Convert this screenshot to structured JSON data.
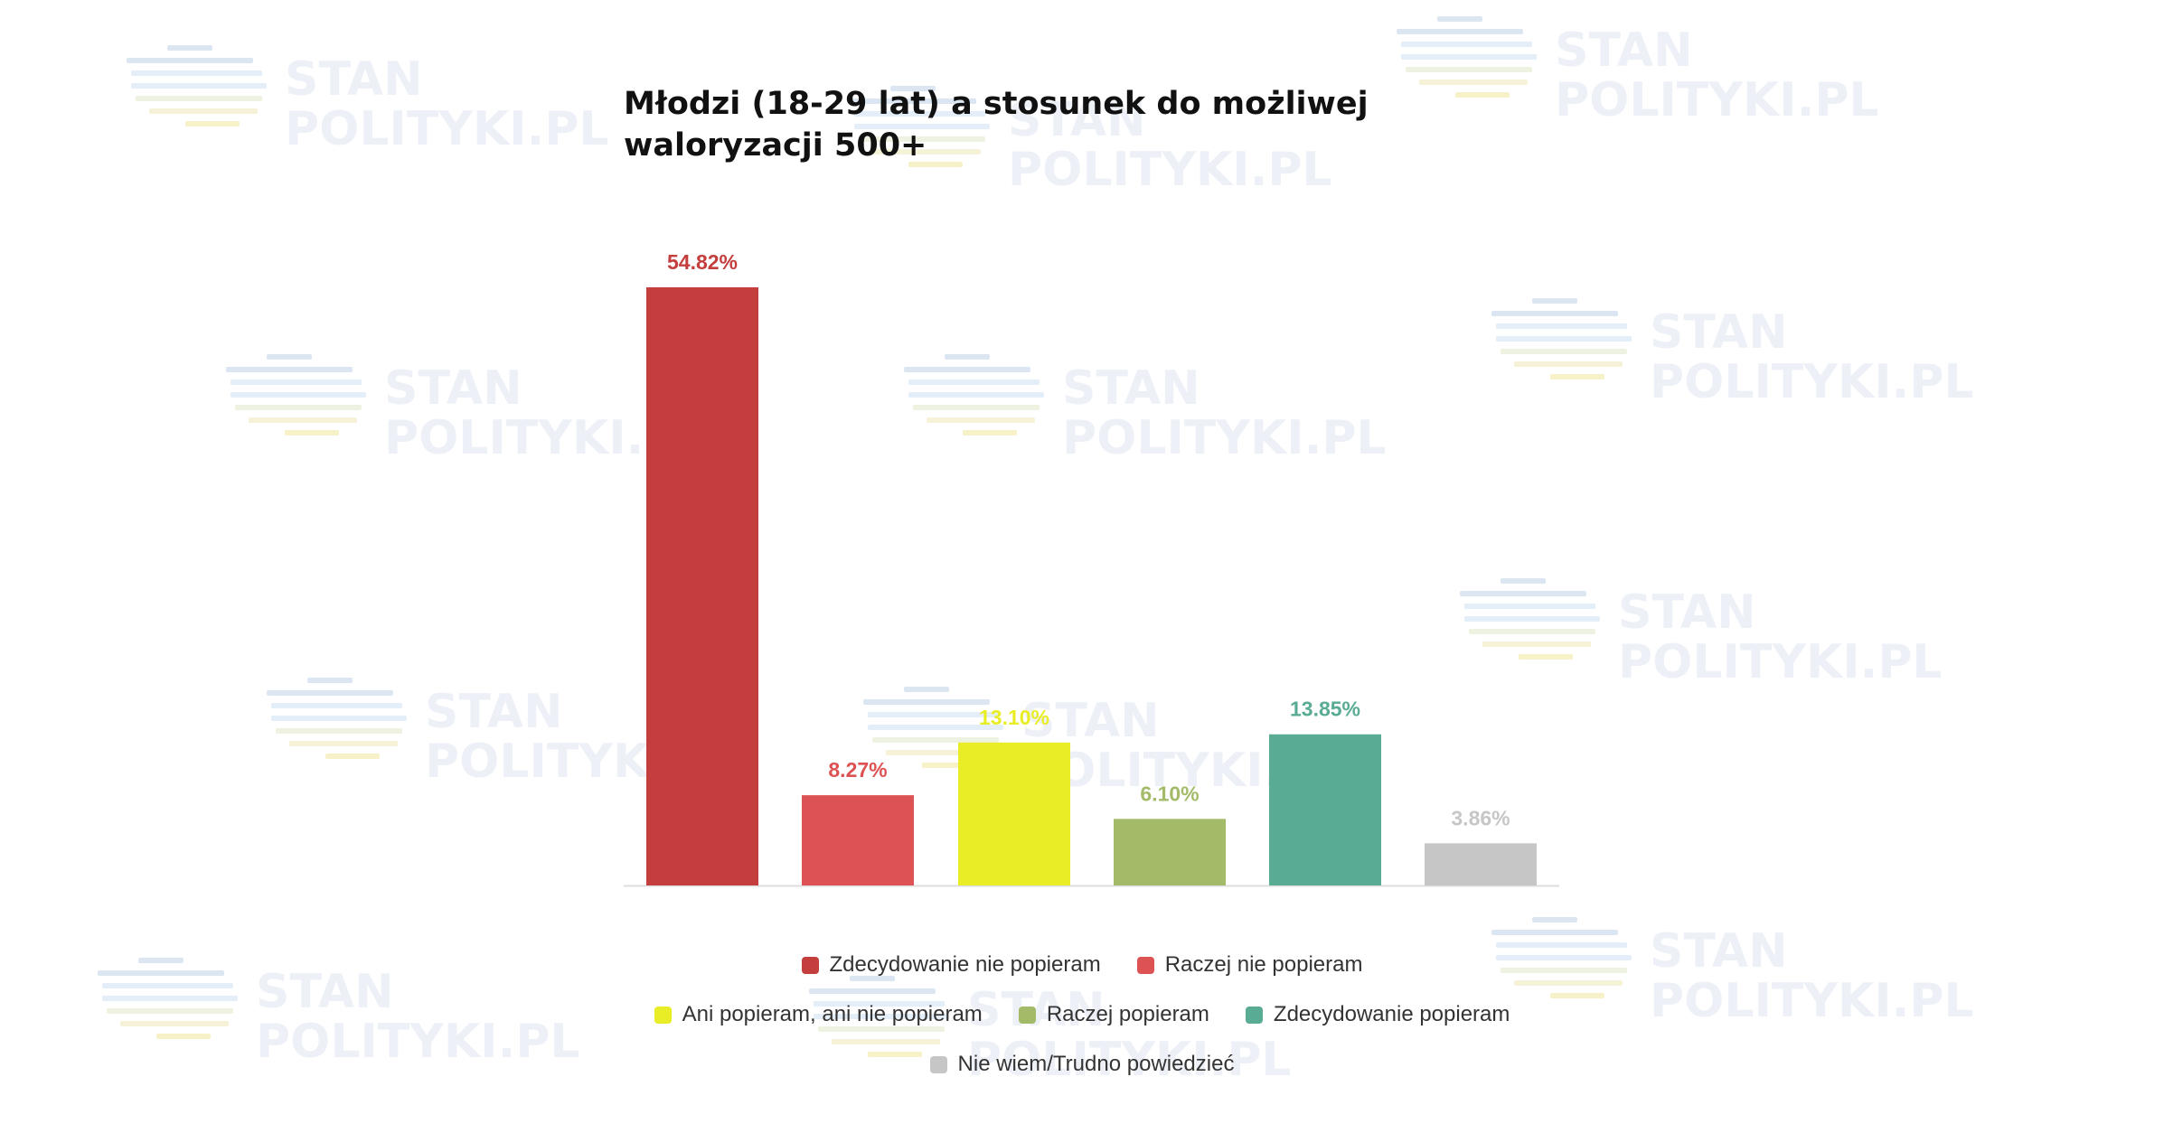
{
  "watermark": {
    "line1": "STAN",
    "line2": "POLITYKI.PL"
  },
  "chart_data": {
    "type": "bar",
    "title": "Młodzi (18-29 lat) a stosunek do możliwej waloryzacji 500+",
    "xlabel": "",
    "ylabel": "",
    "ylim": [
      0,
      60
    ],
    "grid": false,
    "legend_position": "bottom",
    "categories": [
      "Zdecydowanie nie popieram",
      "Raczej nie popieram",
      "Ani popieram, ani nie popieram",
      "Raczej popieram",
      "Zdecydowanie popieram",
      "Nie wiem/Trudno powiedzieć"
    ],
    "values": [
      54.82,
      8.27,
      13.1,
      6.1,
      13.85,
      3.86
    ],
    "value_labels": [
      "54.82%",
      "8.27%",
      "13.10%",
      "6.10%",
      "13.85%",
      "3.86%"
    ],
    "colors": [
      "#c43e3e",
      "#dd5253",
      "#e9ed25",
      "#a3bb69",
      "#5aab93",
      "#c6c6c6"
    ]
  }
}
